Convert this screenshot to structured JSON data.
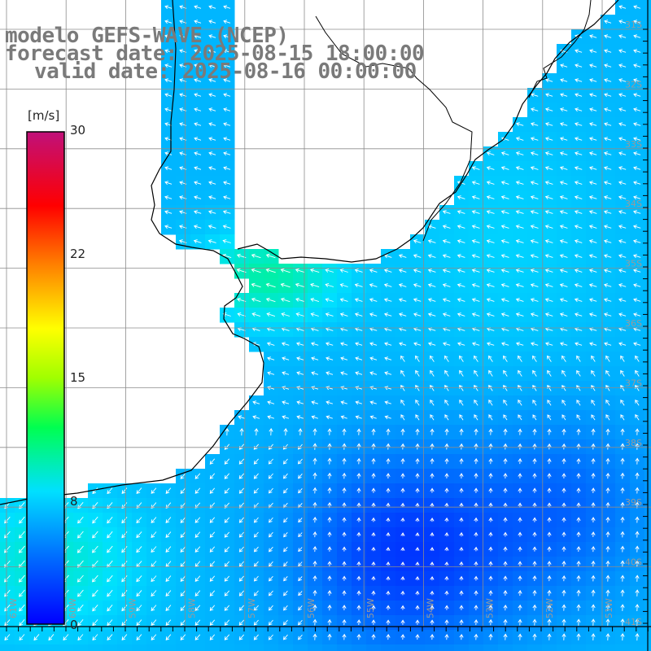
{
  "title": {
    "line1": "modelo GEFS-WAVE (NCEP)",
    "line2": "forecast date: 2025-08-15 18:00:00",
    "line3": "valid date: 2025-08-16 00:00:00"
  },
  "colorbar": {
    "unit": "[m/s]",
    "ticks": [
      "30",
      "22",
      "15",
      "8",
      "0"
    ]
  },
  "map_grid": {
    "lon_labels": [
      "61W",
      "60W",
      "59W",
      "58W",
      "57W",
      "56W",
      "55W",
      "54W",
      "53W",
      "52W",
      "51W"
    ],
    "lat_labels": [
      "31S",
      "32S",
      "33S",
      "34S",
      "35S",
      "36S",
      "37S",
      "38S",
      "39S",
      "40S",
      "41S"
    ]
  },
  "colors": {
    "land": "#ffffff",
    "coast": "#000000",
    "grid": "#8c8c8c",
    "arrow": "#ffffff",
    "title_text": "#7a7a7a"
  }
}
